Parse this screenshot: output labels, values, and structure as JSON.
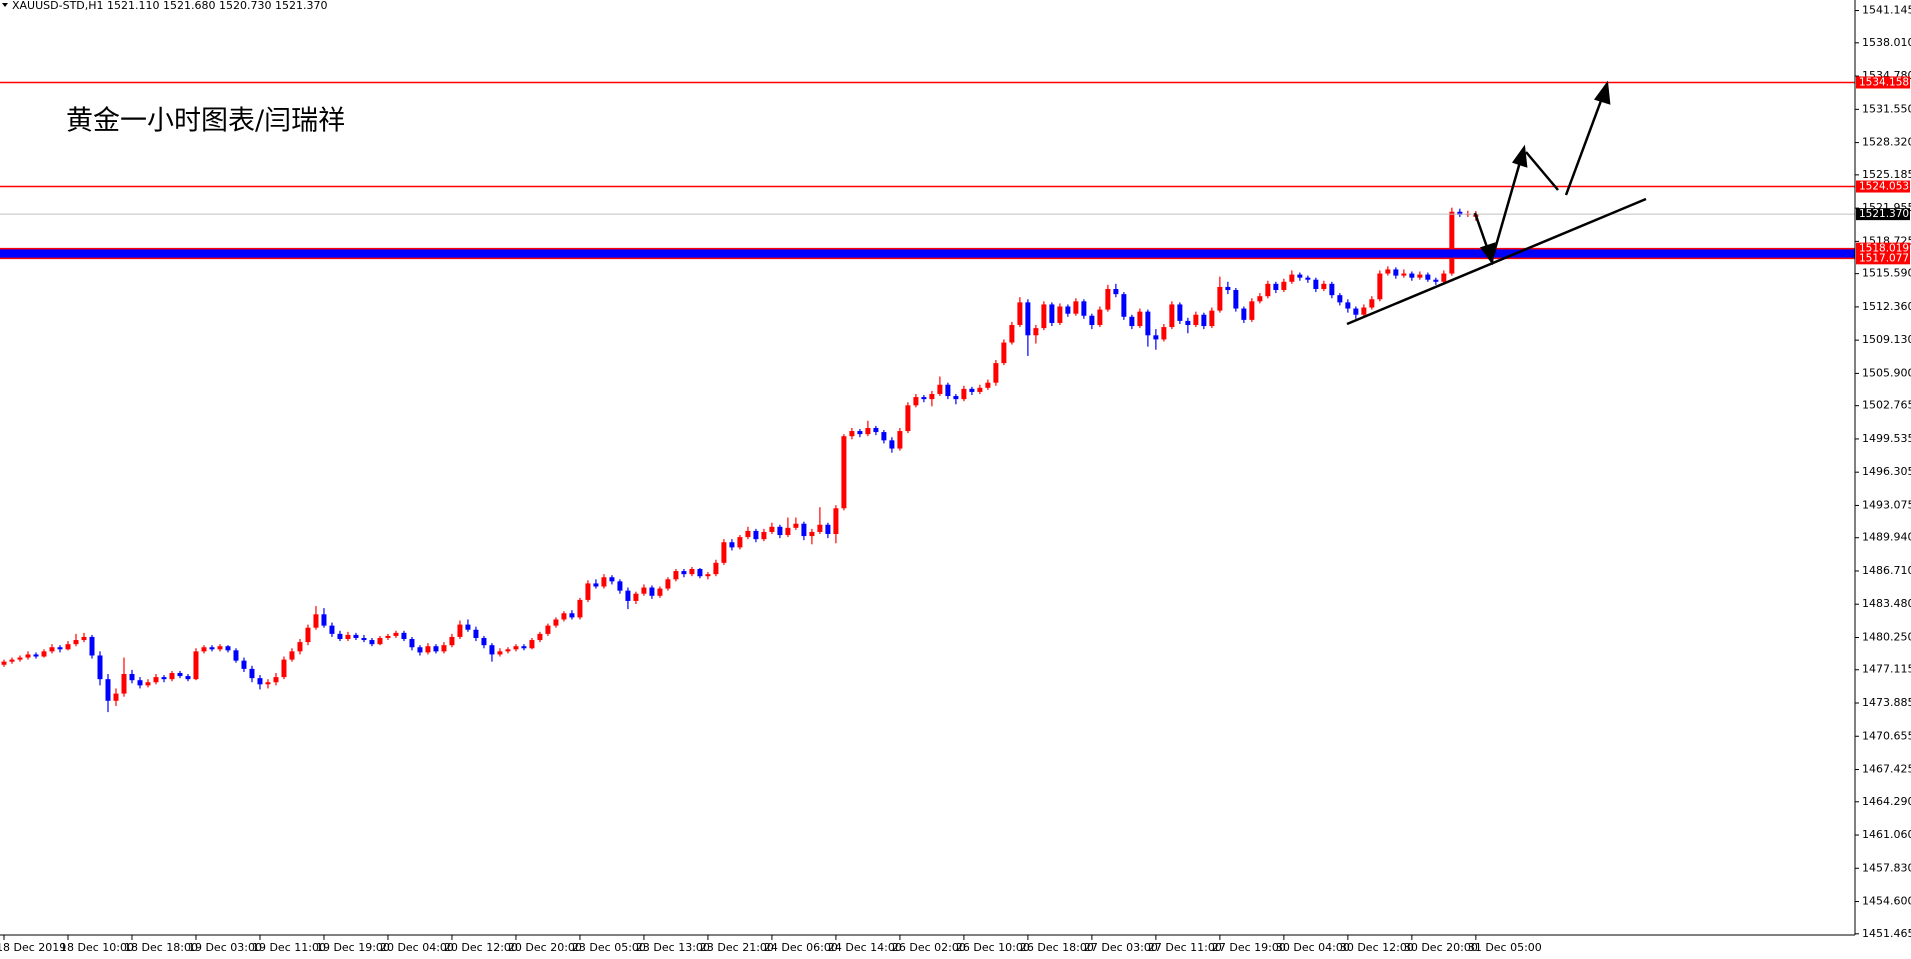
{
  "chart_data": {
    "type": "candlestick",
    "header": "XAUUSD-STD,H1  1521.110 1521.680 1520.730 1521.370",
    "annotation": "黄金一小时图表/闫瑞祥",
    "up_color": "#ff0000",
    "down_color": "#0000ff",
    "xlim": [
      -0.5,
      231.4
    ],
    "ylim": [
      1451.35,
      1542.17
    ],
    "xticks": [
      {
        "value": 0,
        "label": "18 Dec 2019"
      },
      {
        "value": 8,
        "label": "18 Dec 10:00"
      },
      {
        "value": 16,
        "label": "18 Dec 18:00"
      },
      {
        "value": 24,
        "label": "19 Dec 03:00"
      },
      {
        "value": 32,
        "label": "19 Dec 11:00"
      },
      {
        "value": 40,
        "label": "19 Dec 19:00"
      },
      {
        "value": 48,
        "label": "20 Dec 04:00"
      },
      {
        "value": 56,
        "label": "20 Dec 12:00"
      },
      {
        "value": 64,
        "label": "20 Dec 20:00"
      },
      {
        "value": 72,
        "label": "23 Dec 05:00"
      },
      {
        "value": 80,
        "label": "23 Dec 13:00"
      },
      {
        "value": 88,
        "label": "23 Dec 21:00"
      },
      {
        "value": 96,
        "label": "24 Dec 06:00"
      },
      {
        "value": 104,
        "label": "24 Dec 14:00"
      },
      {
        "value": 112,
        "label": "26 Dec 02:00"
      },
      {
        "value": 120,
        "label": "26 Dec 10:00"
      },
      {
        "value": 128,
        "label": "26 Dec 18:00"
      },
      {
        "value": 136,
        "label": "27 Dec 03:00"
      },
      {
        "value": 144,
        "label": "27 Dec 11:00"
      },
      {
        "value": 152,
        "label": "27 Dec 19:00"
      },
      {
        "value": 160,
        "label": "30 Dec 04:00"
      },
      {
        "value": 168,
        "label": "30 Dec 12:00"
      },
      {
        "value": 176,
        "label": "30 Dec 20:00"
      },
      {
        "value": 184,
        "label": "31 Dec 05:00"
      }
    ],
    "yticks": [
      1541.145,
      {
        "value": 1538.01,
        "label": "1538.010"
      },
      {
        "value": 1534.78,
        "label": "1534.780"
      },
      {
        "value": 1531.55,
        "label": "1531.550"
      },
      {
        "value": 1528.32,
        "label": "1528.320"
      },
      1525.185,
      1521.955,
      1518.725,
      {
        "value": 1515.59,
        "label": "1515.590"
      },
      {
        "value": 1512.36,
        "label": "1512.360"
      },
      {
        "value": 1509.13,
        "label": "1509.130"
      },
      {
        "value": 1505.9,
        "label": "1505.900"
      },
      1502.765,
      1499.535,
      1496.305,
      1493.075,
      {
        "value": 1489.94,
        "label": "1489.940"
      },
      {
        "value": 1486.71,
        "label": "1486.710"
      },
      {
        "value": 1483.48,
        "label": "1483.480"
      },
      {
        "value": 1480.25,
        "label": "1480.250"
      },
      1477.115,
      1473.885,
      1470.655,
      1467.425,
      {
        "value": 1464.29,
        "label": "1464.290"
      },
      {
        "value": 1461.06,
        "label": "1461.060"
      },
      {
        "value": 1457.83,
        "label": "1457.830"
      },
      {
        "value": 1454.6,
        "label": "1454.600"
      },
      1451.465
    ],
    "levels": [
      {
        "value": 1534.158,
        "color": "#ff0000"
      },
      {
        "value": 1524.053,
        "color": "#ff0000"
      }
    ],
    "current_price": {
      "value": 1521.37,
      "label": "1521.370",
      "color": "#c0c0c0"
    },
    "zone": {
      "from": 1517.077,
      "to": 1518.019,
      "fill": "#0000ff",
      "border": "#ff0000"
    },
    "ohlc": [
      [
        1477.6,
        1478.1,
        1477.4,
        1477.9
      ],
      [
        1477.9,
        1478.3,
        1477.7,
        1478.1
      ],
      [
        1478.1,
        1478.5,
        1477.9,
        1478.3
      ],
      [
        1478.3,
        1478.9,
        1478.1,
        1478.6
      ],
      [
        1478.6,
        1478.8,
        1478.2,
        1478.4
      ],
      [
        1478.4,
        1479.1,
        1478.3,
        1478.9
      ],
      [
        1478.9,
        1479.6,
        1478.7,
        1479.3
      ],
      [
        1479.3,
        1479.5,
        1478.8,
        1479.1
      ],
      [
        1479.1,
        1479.9,
        1479.0,
        1479.6
      ],
      [
        1479.6,
        1480.6,
        1479.4,
        1480.0
      ],
      [
        1480.0,
        1480.7,
        1479.8,
        1480.3
      ],
      [
        1480.3,
        1480.5,
        1478.2,
        1478.5
      ],
      [
        1478.5,
        1478.9,
        1475.6,
        1476.2
      ],
      [
        1476.2,
        1476.7,
        1473.0,
        1474.1
      ],
      [
        1474.1,
        1475.3,
        1473.6,
        1474.8
      ],
      [
        1474.8,
        1478.3,
        1474.5,
        1476.7
      ],
      [
        1476.7,
        1477.1,
        1475.8,
        1476.1
      ],
      [
        1476.1,
        1476.4,
        1475.3,
        1475.6
      ],
      [
        1475.6,
        1476.2,
        1475.4,
        1475.9
      ],
      [
        1475.9,
        1476.7,
        1475.7,
        1476.4
      ],
      [
        1476.4,
        1476.6,
        1475.9,
        1476.2
      ],
      [
        1476.2,
        1477.0,
        1476.0,
        1476.8
      ],
      [
        1476.8,
        1477.0,
        1476.3,
        1476.5
      ],
      [
        1476.5,
        1476.7,
        1476.0,
        1476.2
      ],
      [
        1476.2,
        1479.2,
        1476.1,
        1478.9
      ],
      [
        1478.9,
        1479.5,
        1478.7,
        1479.3
      ],
      [
        1479.3,
        1479.5,
        1478.9,
        1479.1
      ],
      [
        1479.1,
        1479.6,
        1478.9,
        1479.4
      ],
      [
        1479.4,
        1479.5,
        1478.8,
        1479.0
      ],
      [
        1479.0,
        1479.2,
        1477.8,
        1478.0
      ],
      [
        1478.0,
        1478.3,
        1476.9,
        1477.2
      ],
      [
        1477.2,
        1477.5,
        1475.9,
        1476.3
      ],
      [
        1476.3,
        1476.6,
        1475.2,
        1475.7
      ],
      [
        1475.7,
        1476.2,
        1475.3,
        1475.9
      ],
      [
        1475.9,
        1476.8,
        1475.6,
        1476.4
      ],
      [
        1476.4,
        1478.4,
        1476.2,
        1478.1
      ],
      [
        1478.1,
        1479.2,
        1477.9,
        1478.9
      ],
      [
        1478.9,
        1480.1,
        1478.6,
        1479.8
      ],
      [
        1479.8,
        1481.5,
        1479.5,
        1481.2
      ],
      [
        1481.2,
        1483.3,
        1481.0,
        1482.5
      ],
      [
        1482.5,
        1483.1,
        1481.2,
        1481.4
      ],
      [
        1481.4,
        1481.7,
        1480.3,
        1480.6
      ],
      [
        1480.6,
        1480.9,
        1479.9,
        1480.1
      ],
      [
        1480.1,
        1480.8,
        1479.9,
        1480.5
      ],
      [
        1480.5,
        1480.7,
        1480.0,
        1480.2
      ],
      [
        1480.2,
        1480.5,
        1479.8,
        1480.0
      ],
      [
        1480.0,
        1480.2,
        1479.4,
        1479.6
      ],
      [
        1479.6,
        1480.4,
        1479.5,
        1480.2
      ],
      [
        1480.2,
        1480.6,
        1480.0,
        1480.4
      ],
      [
        1480.4,
        1480.9,
        1480.2,
        1480.7
      ],
      [
        1480.7,
        1480.9,
        1479.9,
        1480.1
      ],
      [
        1480.1,
        1480.3,
        1479.0,
        1479.3
      ],
      [
        1479.3,
        1479.5,
        1478.5,
        1478.8
      ],
      [
        1478.8,
        1479.7,
        1478.6,
        1479.4
      ],
      [
        1479.4,
        1479.6,
        1478.7,
        1478.9
      ],
      [
        1478.9,
        1479.8,
        1478.7,
        1479.5
      ],
      [
        1479.5,
        1480.6,
        1479.3,
        1480.3
      ],
      [
        1480.3,
        1481.9,
        1480.1,
        1481.5
      ],
      [
        1481.5,
        1482.0,
        1480.8,
        1481.0
      ],
      [
        1481.0,
        1481.3,
        1479.9,
        1480.2
      ],
      [
        1480.2,
        1480.4,
        1479.2,
        1479.5
      ],
      [
        1479.5,
        1479.7,
        1477.9,
        1478.6
      ],
      [
        1478.6,
        1479.2,
        1478.4,
        1478.9
      ],
      [
        1478.9,
        1479.3,
        1478.7,
        1479.1
      ],
      [
        1479.1,
        1479.6,
        1478.9,
        1479.4
      ],
      [
        1479.4,
        1479.6,
        1479.0,
        1479.2
      ],
      [
        1479.2,
        1480.2,
        1479.1,
        1480.0
      ],
      [
        1480.0,
        1480.8,
        1479.8,
        1480.6
      ],
      [
        1480.6,
        1481.6,
        1480.4,
        1481.4
      ],
      [
        1481.4,
        1482.2,
        1481.2,
        1482.0
      ],
      [
        1482.0,
        1482.8,
        1481.8,
        1482.6
      ],
      [
        1482.6,
        1482.9,
        1482.0,
        1482.2
      ],
      [
        1482.2,
        1484.1,
        1482.0,
        1483.9
      ],
      [
        1483.9,
        1485.8,
        1483.7,
        1485.5
      ],
      [
        1485.5,
        1485.9,
        1485.0,
        1485.2
      ],
      [
        1485.2,
        1486.4,
        1485.0,
        1486.1
      ],
      [
        1486.1,
        1486.3,
        1485.4,
        1485.7
      ],
      [
        1485.7,
        1485.9,
        1484.5,
        1484.8
      ],
      [
        1484.8,
        1485.1,
        1483.0,
        1483.8
      ],
      [
        1483.8,
        1484.7,
        1483.5,
        1484.5
      ],
      [
        1484.5,
        1485.4,
        1484.3,
        1485.1
      ],
      [
        1485.1,
        1485.3,
        1484.0,
        1484.3
      ],
      [
        1484.3,
        1485.2,
        1484.1,
        1485.0
      ],
      [
        1485.0,
        1486.1,
        1484.8,
        1485.9
      ],
      [
        1485.9,
        1486.9,
        1485.7,
        1486.7
      ],
      [
        1486.7,
        1486.9,
        1486.1,
        1486.4
      ],
      [
        1486.4,
        1487.1,
        1486.2,
        1486.9
      ],
      [
        1486.9,
        1487.0,
        1486.0,
        1486.2
      ],
      [
        1486.2,
        1486.6,
        1485.9,
        1486.4
      ],
      [
        1486.4,
        1487.8,
        1486.2,
        1487.5
      ],
      [
        1487.5,
        1489.8,
        1487.3,
        1489.5
      ],
      [
        1489.5,
        1489.8,
        1488.7,
        1489.0
      ],
      [
        1489.0,
        1490.2,
        1488.8,
        1490.0
      ],
      [
        1490.0,
        1491.0,
        1489.8,
        1490.6
      ],
      [
        1490.6,
        1490.8,
        1489.5,
        1489.8
      ],
      [
        1489.8,
        1490.8,
        1489.6,
        1490.5
      ],
      [
        1490.5,
        1491.4,
        1490.3,
        1491.0
      ],
      [
        1491.0,
        1491.2,
        1489.9,
        1490.2
      ],
      [
        1490.2,
        1491.9,
        1490.0,
        1490.9
      ],
      [
        1490.9,
        1491.9,
        1490.7,
        1491.3
      ],
      [
        1491.3,
        1491.5,
        1489.7,
        1490.1
      ],
      [
        1490.1,
        1490.8,
        1489.3,
        1490.5
      ],
      [
        1490.5,
        1492.9,
        1490.3,
        1491.2
      ],
      [
        1491.2,
        1491.4,
        1489.9,
        1490.3
      ],
      [
        1490.3,
        1493.1,
        1489.4,
        1492.8
      ],
      [
        1492.8,
        1500.0,
        1492.6,
        1499.8
      ],
      [
        1499.8,
        1500.6,
        1499.5,
        1500.3
      ],
      [
        1500.3,
        1500.5,
        1499.7,
        1500.0
      ],
      [
        1500.0,
        1501.3,
        1499.8,
        1500.6
      ],
      [
        1500.6,
        1500.8,
        1499.9,
        1500.2
      ],
      [
        1500.2,
        1500.4,
        1499.1,
        1499.4
      ],
      [
        1499.4,
        1499.7,
        1498.2,
        1498.6
      ],
      [
        1498.6,
        1500.6,
        1498.4,
        1500.3
      ],
      [
        1500.3,
        1503.1,
        1500.1,
        1502.8
      ],
      [
        1502.8,
        1503.9,
        1502.6,
        1503.6
      ],
      [
        1503.6,
        1503.8,
        1503.1,
        1503.4
      ],
      [
        1503.4,
        1504.2,
        1502.7,
        1503.9
      ],
      [
        1503.9,
        1505.6,
        1503.7,
        1504.8
      ],
      [
        1504.8,
        1505.0,
        1503.4,
        1503.7
      ],
      [
        1503.7,
        1503.9,
        1502.9,
        1503.4
      ],
      [
        1503.4,
        1504.7,
        1503.2,
        1504.4
      ],
      [
        1504.4,
        1504.6,
        1503.8,
        1504.1
      ],
      [
        1504.1,
        1504.8,
        1503.9,
        1504.5
      ],
      [
        1504.5,
        1505.3,
        1504.3,
        1505.0
      ],
      [
        1505.0,
        1507.2,
        1504.7,
        1506.9
      ],
      [
        1506.9,
        1509.2,
        1506.7,
        1508.9
      ],
      [
        1508.9,
        1510.9,
        1508.7,
        1510.6
      ],
      [
        1510.6,
        1513.3,
        1510.4,
        1512.8
      ],
      [
        1512.8,
        1513.1,
        1507.6,
        1509.6
      ],
      [
        1509.6,
        1510.6,
        1508.8,
        1510.3
      ],
      [
        1510.3,
        1512.9,
        1510.1,
        1512.6
      ],
      [
        1512.6,
        1512.8,
        1510.5,
        1510.8
      ],
      [
        1510.8,
        1512.7,
        1510.6,
        1512.4
      ],
      [
        1512.4,
        1512.6,
        1511.4,
        1511.7
      ],
      [
        1511.7,
        1513.2,
        1511.5,
        1512.9
      ],
      [
        1512.9,
        1513.1,
        1511.2,
        1511.5
      ],
      [
        1511.5,
        1511.7,
        1510.2,
        1510.6
      ],
      [
        1510.6,
        1512.4,
        1510.4,
        1512.1
      ],
      [
        1512.1,
        1514.5,
        1511.9,
        1514.1
      ],
      [
        1514.1,
        1514.6,
        1513.3,
        1513.6
      ],
      [
        1513.6,
        1513.8,
        1511.1,
        1511.4
      ],
      [
        1511.4,
        1511.6,
        1510.2,
        1510.5
      ],
      [
        1510.5,
        1512.2,
        1510.3,
        1511.9
      ],
      [
        1511.9,
        1512.1,
        1508.5,
        1509.6
      ],
      [
        1509.6,
        1510.2,
        1508.2,
        1509.2
      ],
      [
        1509.2,
        1510.7,
        1509.0,
        1510.4
      ],
      [
        1510.4,
        1512.9,
        1510.2,
        1512.6
      ],
      [
        1512.6,
        1512.8,
        1510.7,
        1511.0
      ],
      [
        1511.0,
        1511.3,
        1509.8,
        1510.6
      ],
      [
        1510.6,
        1511.9,
        1510.4,
        1511.6
      ],
      [
        1511.6,
        1511.8,
        1510.2,
        1510.5
      ],
      [
        1510.5,
        1512.3,
        1510.3,
        1512.0
      ],
      [
        1512.0,
        1515.3,
        1511.8,
        1514.3
      ],
      [
        1514.3,
        1514.8,
        1513.6,
        1514.0
      ],
      [
        1514.0,
        1514.2,
        1511.9,
        1512.2
      ],
      [
        1512.2,
        1512.4,
        1510.8,
        1511.1
      ],
      [
        1511.1,
        1513.2,
        1510.9,
        1512.9
      ],
      [
        1512.9,
        1513.7,
        1512.7,
        1513.4
      ],
      [
        1513.4,
        1514.9,
        1513.2,
        1514.6
      ],
      [
        1514.6,
        1514.8,
        1513.7,
        1514.0
      ],
      [
        1514.0,
        1515.1,
        1513.8,
        1514.8
      ],
      [
        1514.8,
        1515.9,
        1514.6,
        1515.5
      ],
      [
        1515.5,
        1515.7,
        1514.9,
        1515.2
      ],
      [
        1515.2,
        1515.4,
        1514.7,
        1515.0
      ],
      [
        1515.0,
        1515.2,
        1513.8,
        1514.1
      ],
      [
        1514.1,
        1514.9,
        1513.9,
        1514.6
      ],
      [
        1514.6,
        1514.8,
        1513.2,
        1513.5
      ],
      [
        1513.5,
        1513.7,
        1512.5,
        1512.8
      ],
      [
        1512.8,
        1513.1,
        1511.8,
        1512.2
      ],
      [
        1512.2,
        1512.4,
        1511.2,
        1511.6
      ],
      [
        1511.6,
        1512.6,
        1511.4,
        1512.3
      ],
      [
        1512.3,
        1513.4,
        1512.1,
        1513.1
      ],
      [
        1513.1,
        1515.9,
        1512.9,
        1515.6
      ],
      [
        1515.6,
        1516.3,
        1515.4,
        1516.0
      ],
      [
        1516.0,
        1516.2,
        1515.1,
        1515.4
      ],
      [
        1515.4,
        1516.0,
        1515.2,
        1515.6
      ],
      [
        1515.6,
        1515.8,
        1514.9,
        1515.2
      ],
      [
        1515.2,
        1515.8,
        1515.0,
        1515.5
      ],
      [
        1515.5,
        1515.7,
        1514.8,
        1515.0
      ],
      [
        1515.0,
        1515.2,
        1514.5,
        1514.8
      ],
      [
        1514.8,
        1515.9,
        1514.6,
        1515.6
      ],
      [
        1515.6,
        1522.0,
        1515.4,
        1521.6
      ],
      [
        1521.6,
        1521.9,
        1521.1,
        1521.3
      ],
      [
        1521.3,
        1521.7,
        1521.1,
        1521.4
      ],
      [
        1521.11,
        1521.68,
        1520.73,
        1521.37
      ]
    ]
  }
}
